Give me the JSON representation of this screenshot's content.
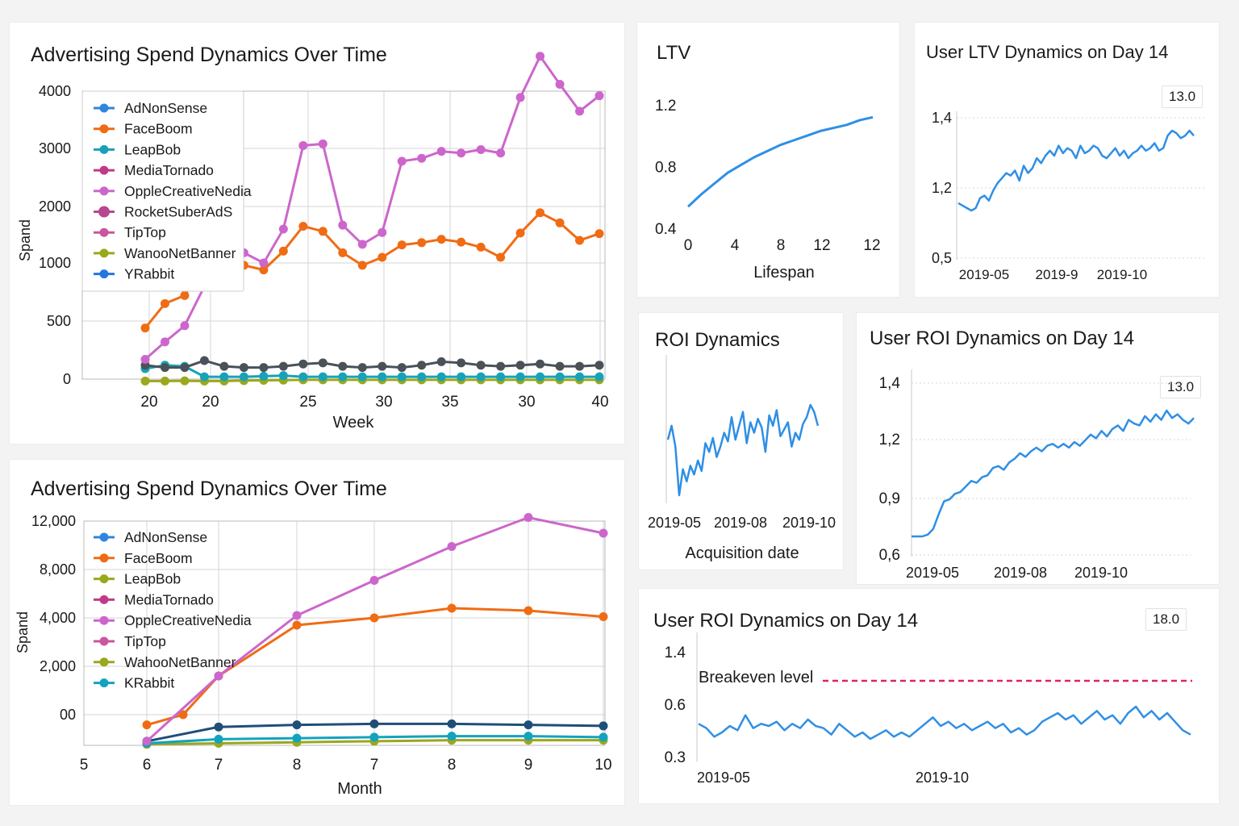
{
  "colors": {
    "AdNonSense": "#2e86de",
    "FaceBoom": "#f06c14",
    "LeapBob": "#17a2b8",
    "LeapBob_b": "#9aa81c",
    "MediaTornado": "#c2398a",
    "OppleCreativeNedia": "#cc66cc",
    "RocketSuberAdS": "#b8478f",
    "TipTop": "#c9569e",
    "WanooNetBanner": "#9aa81c",
    "YRabbit": "#2277dd",
    "KRabbit": "#12a3bf",
    "dark_series": "#4a5158",
    "blue_line": "#2f8fe5",
    "breakeven": "#e0245e"
  },
  "panels": {
    "spend_week": {
      "title": "Advertising Spend Dynamics Over Time",
      "chart_data": {
        "type": "line",
        "title": "Advertising Spend Dynamics Over Time",
        "xlabel": "Week",
        "ylabel": "Spand",
        "x_ticks": [
          "20",
          "20",
          "20",
          "25",
          "30",
          "35",
          "30",
          "40"
        ],
        "y_ticks": [
          "0",
          "500",
          "1000",
          "2000",
          "3000",
          "4000"
        ],
        "legend_placement": "top-left",
        "legend": [
          "AdNonSense",
          "FaceBoom",
          "LeapBob",
          "MediaTornado",
          "OppleCreativeNedia",
          "RocketSuberAdS",
          "TipTop",
          "WanooNetBanner",
          "YRabbit"
        ],
        "ylim": [
          0,
          4000
        ],
        "series": [
          {
            "name": "OppleCreativeNedia",
            "values": [
              170,
              320,
              460,
              800,
              1210,
              1180,
              1000,
              1600,
              3050,
              3080,
              1670,
              1330,
              1540,
              2780,
              2830,
              2950,
              2920,
              2980,
              2920,
              3890,
              4610,
              4120,
              3650,
              3920
            ]
          },
          {
            "name": "FaceBoom",
            "values": [
              440,
              650,
              720,
              1020,
              1050,
              980,
              940,
              1210,
              1650,
              1560,
              1180,
              980,
              1100,
              1320,
              1360,
              1420,
              1370,
              1280,
              1100,
              1530,
              1890,
              1710,
              1400,
              1520
            ]
          },
          {
            "name": "RocketSuberAdS",
            "values": [
              120,
              100,
              100,
              160,
              110,
              100,
              100,
              110,
              130,
              140,
              110,
              100,
              110,
              100,
              120,
              150,
              140,
              120,
              110,
              120,
              130,
              110,
              110,
              120
            ]
          },
          {
            "name": "LeapBob",
            "values": [
              90,
              120,
              110,
              20,
              20,
              20,
              25,
              30,
              20,
              20,
              20,
              20,
              20,
              20,
              20,
              20,
              20,
              20,
              20,
              20,
              20,
              20,
              20,
              20
            ]
          },
          {
            "name": "WanooNetBanner",
            "values": [
              -40,
              -40,
              -35,
              -40,
              -40,
              -30,
              -25,
              -20,
              -15,
              -15,
              -15,
              -15,
              -15,
              -15,
              -15,
              -15,
              -15,
              -15,
              -15,
              -15,
              -15,
              -15,
              -15,
              -15
            ]
          }
        ]
      }
    },
    "spend_month": {
      "title": "Advertising Spend Dynamics Over Time",
      "chart_data": {
        "type": "line",
        "title": "Advertising Spend Dynamics Over Time",
        "xlabel": "Month",
        "ylabel": "Spand",
        "x_ticks": [
          "5",
          "6",
          "7",
          "8",
          "7",
          "8",
          "9",
          "10"
        ],
        "y_ticks": [
          "00",
          "2,000",
          "4,000",
          "8,000",
          "12,000"
        ],
        "legend_placement": "top-left",
        "legend": [
          "AdNonSense",
          "FaceBoom",
          "LeapBob",
          "MediaTornado",
          "OppleCreativeNedia",
          "TipTop",
          "WahooNetBanner",
          "KRabbit"
        ],
        "series": [
          {
            "name": "OppleCreativeNedia",
            "x": [
              "6",
              "7",
              "8",
              "7",
              "8",
              "9",
              "10"
            ],
            "values": [
              -1300,
              1600,
              4200,
              7100,
              9900,
              12300,
              11000
            ]
          },
          {
            "name": "FaceBoom",
            "x": [
              "6",
              "6.5",
              "7",
              "8",
              "7",
              "8",
              "9",
              "10"
            ],
            "values": [
              -500,
              0,
              1600,
              3700,
              4000,
              4800,
              4600,
              4100
            ]
          },
          {
            "name": "AdNonSense",
            "x": [
              "6",
              "7",
              "8",
              "7",
              "8",
              "9",
              "10"
            ],
            "values": [
              -1300,
              -600,
              -500,
              -450,
              -450,
              -500,
              -550
            ]
          },
          {
            "name": "KRabbit",
            "x": [
              "6",
              "7",
              "8",
              "7",
              "8",
              "9",
              "10"
            ],
            "values": [
              -1400,
              -1200,
              -1150,
              -1100,
              -1050,
              -1050,
              -1100
            ]
          },
          {
            "name": "WahooNetBanner",
            "x": [
              "6",
              "7",
              "8",
              "7",
              "8",
              "9",
              "10"
            ],
            "values": [
              -1450,
              -1400,
              -1350,
              -1300,
              -1250,
              -1250,
              -1250
            ]
          }
        ]
      }
    },
    "ltv": {
      "title": "LTV",
      "chart_data": {
        "type": "line",
        "xlabel": "Lifespan",
        "ylabel": "",
        "x_ticks": [
          "0",
          "4",
          "8",
          "12",
          "12"
        ],
        "y_ticks": [
          "0.4",
          "0.8",
          "1.2"
        ],
        "ylim": [
          0.4,
          1.2
        ],
        "x": [
          0,
          1,
          2,
          3,
          4,
          5,
          6,
          7,
          8,
          9,
          10,
          11,
          12,
          13,
          14
        ],
        "values": [
          0.54,
          0.62,
          0.69,
          0.76,
          0.81,
          0.86,
          0.9,
          0.94,
          0.97,
          1.0,
          1.03,
          1.05,
          1.07,
          1.1,
          1.12
        ]
      }
    },
    "user_ltv": {
      "title": "User LTV Dynamics on Day 14",
      "badge": "13.0",
      "chart_data": {
        "type": "line",
        "x_ticks": [
          "2019-05",
          "2019-9",
          "2019-10"
        ],
        "y_ticks": [
          "0,5",
          "1,2",
          "1,4"
        ],
        "ylim": [
          0.5,
          1.5
        ],
        "values": [
          1.12,
          1.11,
          1.1,
          1.09,
          1.1,
          1.14,
          1.15,
          1.13,
          1.17,
          1.2,
          1.22,
          1.24,
          1.23,
          1.25,
          1.21,
          1.27,
          1.24,
          1.26,
          1.3,
          1.28,
          1.31,
          1.33,
          1.31,
          1.35,
          1.32,
          1.34,
          1.33,
          1.3,
          1.35,
          1.32,
          1.33,
          1.35,
          1.34,
          1.31,
          1.3,
          1.32,
          1.34,
          1.31,
          1.33,
          1.3,
          1.32,
          1.33,
          1.35,
          1.33,
          1.34,
          1.36,
          1.33,
          1.34,
          1.39,
          1.41,
          1.4,
          1.38,
          1.39,
          1.41,
          1.39
        ]
      }
    },
    "roi": {
      "title": "ROI Dynamics",
      "chart_data": {
        "type": "line",
        "xlabel": "Acquisition date",
        "x_ticks": [
          "2019-05",
          "2019-08",
          "2019-10"
        ],
        "values": [
          0.62,
          0.7,
          0.58,
          0.3,
          0.45,
          0.38,
          0.47,
          0.42,
          0.5,
          0.44,
          0.6,
          0.55,
          0.63,
          0.52,
          0.58,
          0.66,
          0.61,
          0.75,
          0.62,
          0.7,
          0.78,
          0.6,
          0.72,
          0.66,
          0.74,
          0.69,
          0.55,
          0.76,
          0.7,
          0.79,
          0.64,
          0.68,
          0.72,
          0.58,
          0.66,
          0.62,
          0.71,
          0.75,
          0.82,
          0.78,
          0.7
        ]
      }
    },
    "user_roi": {
      "title": "User ROI Dynamics on Day 14",
      "badge": "13.0",
      "chart_data": {
        "type": "line",
        "x_ticks": [
          "2019-05",
          "2019-08",
          "2019-10"
        ],
        "y_ticks": [
          "0,6",
          "0,9",
          "1,2",
          "1,4"
        ],
        "values": [
          0.7,
          0.7,
          0.7,
          0.71,
          0.74,
          0.82,
          0.89,
          0.9,
          0.93,
          0.94,
          0.97,
          1.0,
          0.99,
          1.02,
          1.03,
          1.07,
          1.08,
          1.06,
          1.1,
          1.12,
          1.15,
          1.13,
          1.16,
          1.18,
          1.16,
          1.19,
          1.2,
          1.18,
          1.2,
          1.18,
          1.21,
          1.19,
          1.22,
          1.25,
          1.23,
          1.27,
          1.24,
          1.28,
          1.3,
          1.27,
          1.33,
          1.31,
          1.3,
          1.35,
          1.32,
          1.36,
          1.33,
          1.38,
          1.34,
          1.36,
          1.33,
          1.31,
          1.34
        ]
      }
    },
    "user_roi_2": {
      "title": "User ROI Dynamics on Day 14",
      "badge": "18.0",
      "annotation": "Breakeven level",
      "chart_data": {
        "type": "line",
        "x_ticks": [
          "2019-05",
          "2019-10"
        ],
        "y_ticks": [
          "0.3",
          "0.6",
          "1.4"
        ],
        "breakeven": 1.0,
        "values": [
          0.52,
          0.5,
          0.46,
          0.48,
          0.51,
          0.49,
          0.56,
          0.5,
          0.52,
          0.51,
          0.53,
          0.49,
          0.52,
          0.5,
          0.54,
          0.51,
          0.5,
          0.47,
          0.52,
          0.49,
          0.46,
          0.48,
          0.45,
          0.47,
          0.49,
          0.46,
          0.48,
          0.46,
          0.49,
          0.52,
          0.55,
          0.51,
          0.53,
          0.5,
          0.52,
          0.49,
          0.51,
          0.53,
          0.5,
          0.52,
          0.48,
          0.5,
          0.47,
          0.49,
          0.53,
          0.55,
          0.57,
          0.54,
          0.56,
          0.52,
          0.55,
          0.58,
          0.54,
          0.56,
          0.52,
          0.57,
          0.6,
          0.55,
          0.58,
          0.54,
          0.57,
          0.53,
          0.49,
          0.47
        ]
      }
    }
  }
}
